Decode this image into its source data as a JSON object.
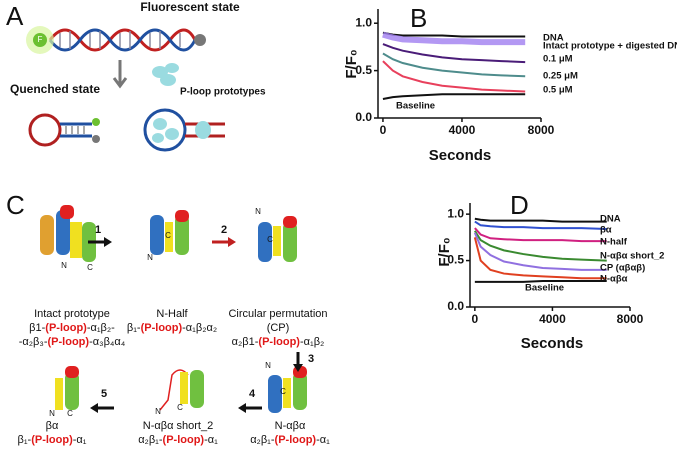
{
  "panels": {
    "A": {
      "label": "A",
      "fluorescent": "Fluorescent state",
      "quenched": "Quenched state",
      "prototypes": "P-loop prototypes",
      "fluorophore": "F"
    },
    "C": {
      "label": "C",
      "steps": [
        "1",
        "2",
        "3",
        "4",
        "5"
      ],
      "highlight_color": "#e01818",
      "constructs": [
        {
          "name": [
            "Intact prototype"
          ],
          "formula": [
            [
              "β1-",
              "(P-loop)",
              "-α₁β₂-"
            ],
            [
              "-α₂β₃-",
              "(P-loop)",
              "-α₃β₄α₄"
            ]
          ],
          "termini": [
            "N",
            "C"
          ]
        },
        {
          "name": [
            "N-Half"
          ],
          "formula": [
            [
              "β₁-",
              "(P-loop)",
              "-α₁β₂α₂"
            ]
          ],
          "termini": [
            "N",
            "C"
          ]
        },
        {
          "name": [
            "Circular permutation",
            "(CP)"
          ],
          "formula": [
            [
              "α₂β1-",
              "(P-loop)",
              "-α₁β₂"
            ]
          ],
          "termini": [
            "N",
            "C"
          ]
        },
        {
          "name": [
            "N-αβα"
          ],
          "formula": [
            [
              "α₂β₁-",
              "(P-loop)",
              "-α₁"
            ]
          ],
          "termini": [
            "N",
            "C"
          ]
        },
        {
          "name": [
            "N-αβα short_2"
          ],
          "formula": [
            [
              "α₂β₁-",
              "(P-loop)",
              "-α₁"
            ]
          ],
          "termini": [
            "N",
            "C"
          ]
        },
        {
          "name": [
            "βα"
          ],
          "formula": [
            [
              "β₁-",
              "(P-loop)",
              "-α₁"
            ]
          ],
          "termini": [
            "N",
            "C"
          ]
        }
      ]
    }
  },
  "chart_data": [
    {
      "type": "line",
      "panel_label": "B",
      "xlabel": "Seconds",
      "ylabel": "F/F₀",
      "xlim": [
        -250,
        8000
      ],
      "xticks": [
        0,
        4000,
        8000
      ],
      "ylim": [
        0,
        1.15
      ],
      "yticks": [
        {
          "value": 0,
          "label": "0.0"
        },
        {
          "value": 0.5,
          "label": "0.5"
        },
        {
          "value": 1,
          "label": "1.0"
        }
      ],
      "x": [
        0,
        500,
        1000,
        2000,
        3000,
        4000,
        5000,
        6000,
        7200
      ],
      "series": [
        {
          "name": "DNA",
          "color": "#111111",
          "values": [
            0.9,
            0.88,
            0.87,
            0.87,
            0.87,
            0.86,
            0.86,
            0.86,
            0.86
          ]
        },
        {
          "name": "Intact prototype + digested DNA",
          "color": "#a07ef0",
          "values": [
            0.88,
            0.85,
            0.83,
            0.82,
            0.81,
            0.81,
            0.8,
            0.8,
            0.8
          ]
        },
        {
          "name": "0.1 μM",
          "color": "#4a1c78",
          "values": [
            0.78,
            0.74,
            0.71,
            0.67,
            0.64,
            0.62,
            0.61,
            0.6,
            0.59
          ]
        },
        {
          "name": "0.25 μM",
          "color": "#4e8c8c",
          "values": [
            0.68,
            0.62,
            0.58,
            0.53,
            0.5,
            0.48,
            0.46,
            0.45,
            0.44
          ]
        },
        {
          "name": "0.5 μM",
          "color": "#e8405c",
          "values": [
            0.6,
            0.5,
            0.44,
            0.38,
            0.34,
            0.32,
            0.3,
            0.29,
            0.28
          ]
        },
        {
          "name": "Baseline",
          "color": "#111111",
          "values": [
            0.2,
            0.22,
            0.23,
            0.24,
            0.25,
            0.25,
            0.25,
            0.25,
            0.25
          ]
        }
      ]
    },
    {
      "type": "line",
      "panel_label": "D",
      "xlabel": "Seconds",
      "ylabel": "F/F₀",
      "xlim": [
        -250,
        8000
      ],
      "xticks": [
        0,
        4000,
        8000
      ],
      "ylim": [
        0,
        1.12
      ],
      "yticks": [
        {
          "value": 0,
          "label": "0.0"
        },
        {
          "value": 0.5,
          "label": "0.5"
        },
        {
          "value": 1,
          "label": "1.0"
        }
      ],
      "x": [
        0,
        300,
        800,
        1500,
        2500,
        3500,
        4500,
        5500,
        6800
      ],
      "series": [
        {
          "name": "DNA",
          "color": "#111111",
          "values": [
            0.95,
            0.94,
            0.93,
            0.93,
            0.93,
            0.93,
            0.92,
            0.92,
            0.92
          ]
        },
        {
          "name": "βα",
          "color": "#3050d0",
          "values": [
            0.92,
            0.88,
            0.87,
            0.86,
            0.86,
            0.85,
            0.85,
            0.85,
            0.84
          ]
        },
        {
          "name": "N-half",
          "color": "#d02080",
          "values": [
            0.85,
            0.78,
            0.74,
            0.73,
            0.72,
            0.72,
            0.72,
            0.71,
            0.71
          ]
        },
        {
          "name": "N-αβα short_2",
          "color": "#3a8a30",
          "values": [
            0.82,
            0.72,
            0.66,
            0.61,
            0.57,
            0.54,
            0.52,
            0.51,
            0.5
          ]
        },
        {
          "name": "CP (αβαβ)",
          "color": "#9070e0",
          "values": [
            0.8,
            0.65,
            0.56,
            0.49,
            0.45,
            0.42,
            0.41,
            0.4,
            0.4
          ]
        },
        {
          "name": "N-αβα",
          "color": "#e04020",
          "values": [
            0.75,
            0.5,
            0.4,
            0.36,
            0.34,
            0.33,
            0.32,
            0.31,
            0.31
          ]
        },
        {
          "name": "Baseline",
          "color": "#111111",
          "values": [
            0.27,
            0.27,
            0.27,
            0.27,
            0.27,
            0.28,
            0.28,
            0.28,
            0.28
          ]
        }
      ]
    }
  ]
}
